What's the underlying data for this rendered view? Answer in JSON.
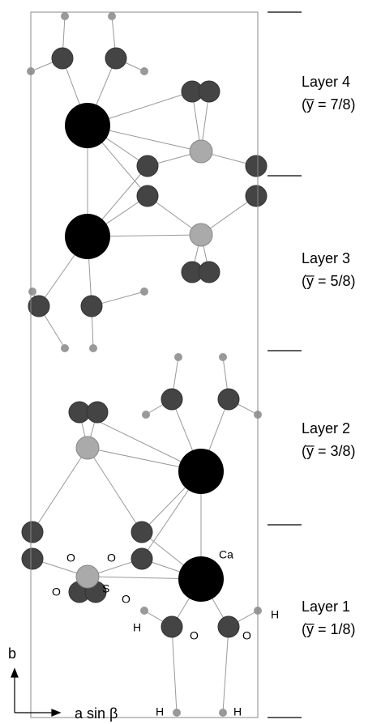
{
  "layers": [
    {
      "label": "Layer 4",
      "position": "(y̅ = 7/8)"
    },
    {
      "label": "Layer 3",
      "position": "(y̅ = 5/8)"
    },
    {
      "label": "Layer 2",
      "position": "(y̅ = 3/8)"
    },
    {
      "label": "Layer 1",
      "position": "(y̅ = 1/8)"
    }
  ],
  "atom_labels": [
    "Ca",
    "S",
    "O",
    "O",
    "O",
    "O",
    "H",
    "O",
    "O",
    "H",
    "H",
    "H"
  ],
  "axes": {
    "vertical": "b",
    "horizontal": "a sin β"
  }
}
